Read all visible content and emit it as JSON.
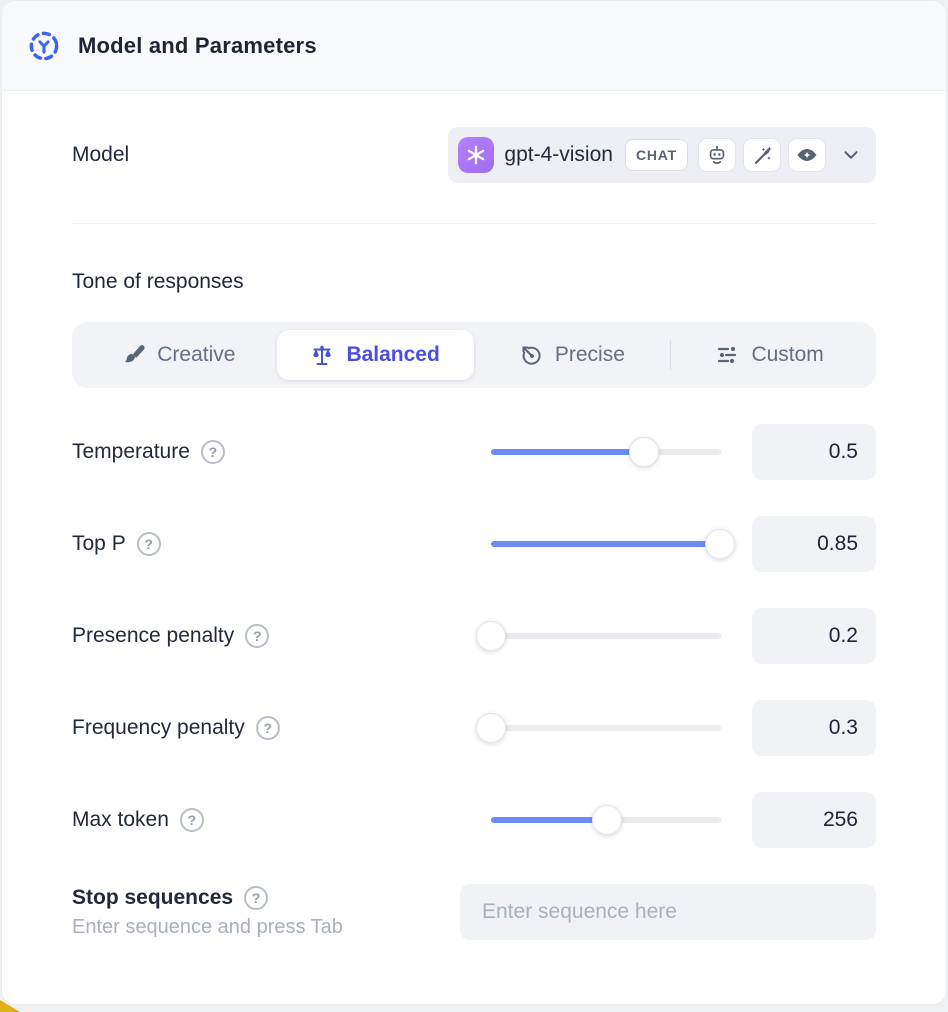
{
  "header": {
    "title": "Model and Parameters"
  },
  "model_row": {
    "label": "Model",
    "selected_model": "gpt-4-vision",
    "type_badge": "CHAT",
    "capability_icons": [
      "robot",
      "magic-wand",
      "vision"
    ]
  },
  "tone": {
    "heading": "Tone of responses",
    "options": [
      {
        "label": "Creative",
        "icon": "paintbrush",
        "selected": false
      },
      {
        "label": "Balanced",
        "icon": "balance-scale",
        "selected": true
      },
      {
        "label": "Precise",
        "icon": "target",
        "selected": false
      },
      {
        "label": "Custom",
        "icon": "sliders",
        "selected": false
      }
    ]
  },
  "parameters": [
    {
      "label": "Temperature",
      "value": "0.5",
      "fill_percent": 66.5
    },
    {
      "label": "Top P",
      "value": "0.85",
      "fill_percent": 99.5
    },
    {
      "label": "Presence penalty",
      "value": "0.2",
      "fill_percent": 0
    },
    {
      "label": "Frequency penalty",
      "value": "0.3",
      "fill_percent": 0
    },
    {
      "label": "Max token",
      "value": "256",
      "fill_percent": 50.5
    }
  ],
  "stop_sequences": {
    "label": "Stop sequences",
    "helper": "Enter sequence and press Tab",
    "placeholder": "Enter sequence here"
  },
  "colors": {
    "accent_indigo": "#4a4fdf",
    "slider_blue": "#6d8bf7",
    "openai_purple": "#a06cf0",
    "header_icon_blue": "#3d63f2",
    "yellow_corner": "#ddb214"
  }
}
